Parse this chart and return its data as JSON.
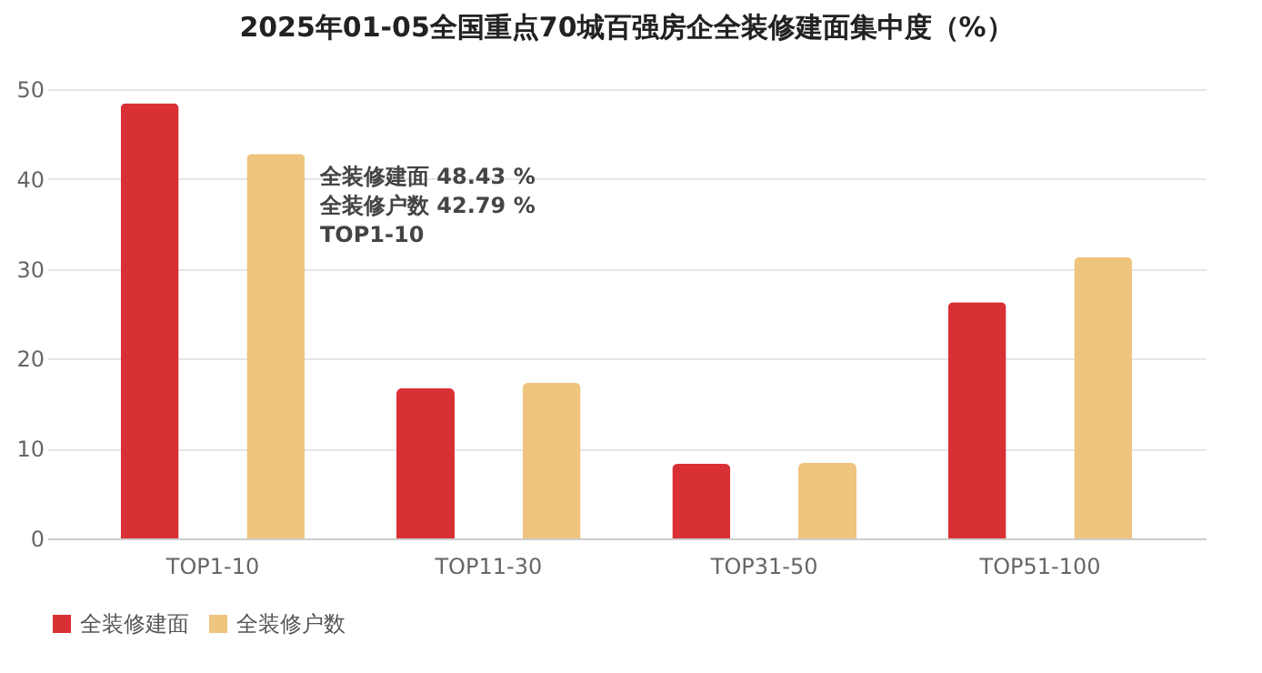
{
  "chart_data": {
    "type": "bar",
    "title": "2025年01-05全国重点70城百强房企全装修建面集中度（%）",
    "categories": [
      "TOP1-10",
      "TOP11-30",
      "TOP31-50",
      "TOP51-100"
    ],
    "series": [
      {
        "name": "全装修建面",
        "color": "#d93036",
        "values": [
          48.43,
          16.7,
          8.3,
          26.3
        ]
      },
      {
        "name": "全装修户数",
        "color": "#efc47f",
        "values": [
          42.79,
          17.3,
          8.4,
          31.3
        ]
      }
    ],
    "ylim": [
      0,
      50
    ],
    "yticks": [
      0,
      10,
      20,
      30,
      40,
      50
    ],
    "grid": "y",
    "legend": "bottom",
    "annotations": [
      "全装修建面 48.43 %",
      "全装修户数 42.79 %",
      "TOP1-10"
    ]
  }
}
